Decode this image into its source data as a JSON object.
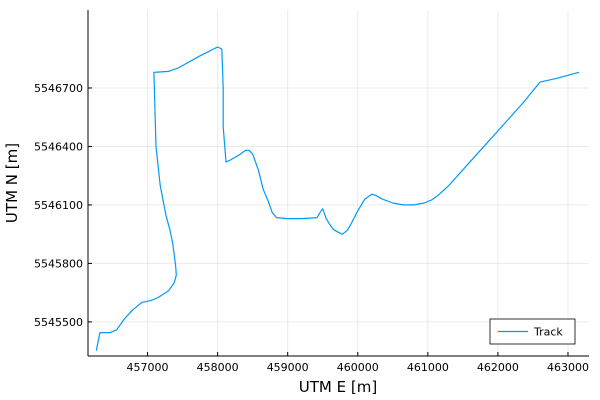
{
  "chart_data": {
    "type": "line",
    "title": "",
    "xlabel": "UTM E [m]",
    "ylabel": "UTM N [m]",
    "xlim": [
      456150,
      463300
    ],
    "ylim": [
      5545325,
      5547100
    ],
    "xticks": [
      457000,
      458000,
      459000,
      460000,
      461000,
      462000,
      463000
    ],
    "yticks": [
      5545500,
      5545800,
      5546100,
      5546400,
      5546700
    ],
    "grid": true,
    "legend": {
      "placement": "bottom-right"
    },
    "series": [
      {
        "name": "Track",
        "color": "#009AFA",
        "x": [
          456270,
          456320,
          456470,
          456560,
          456680,
          456800,
          456920,
          457050,
          457150,
          457300,
          457380,
          457410,
          457400,
          457360,
          457320,
          457260,
          457180,
          457120,
          457090,
          457300,
          457450,
          457750,
          458000,
          458060,
          458080,
          458080,
          458120,
          458180,
          458300,
          458400,
          458450,
          458500,
          458580,
          458650,
          458720,
          458780,
          458840,
          459000,
          459200,
          459420,
          459460,
          459500,
          459550,
          459600,
          459650,
          459720,
          459780,
          459850,
          459900,
          460000,
          460100,
          460200,
          460250,
          460350,
          460500,
          460650,
          460800,
          460950,
          461050,
          461150,
          461300,
          461500,
          461700,
          461900,
          462100,
          462350,
          462600,
          462850,
          463150
        ],
        "y": [
          5545355,
          5545445,
          5545445,
          5545460,
          5545520,
          5545565,
          5545600,
          5545610,
          5545625,
          5545660,
          5545700,
          5545740,
          5545790,
          5545900,
          5545970,
          5546050,
          5546200,
          5546400,
          5546780,
          5546785,
          5546805,
          5546865,
          5546910,
          5546900,
          5546700,
          5546500,
          5546320,
          5546330,
          5546355,
          5546380,
          5546380,
          5546360,
          5546280,
          5546180,
          5546120,
          5546060,
          5546035,
          5546030,
          5546030,
          5546035,
          5546060,
          5546080,
          5546030,
          5546000,
          5545975,
          5545960,
          5545950,
          5545970,
          5546000,
          5546070,
          5546130,
          5546155,
          5546150,
          5546130,
          5546110,
          5546100,
          5546100,
          5546110,
          5546125,
          5546150,
          5546200,
          5546280,
          5546360,
          5546440,
          5546520,
          5546620,
          5546730,
          5546750,
          5546780
        ]
      }
    ]
  }
}
